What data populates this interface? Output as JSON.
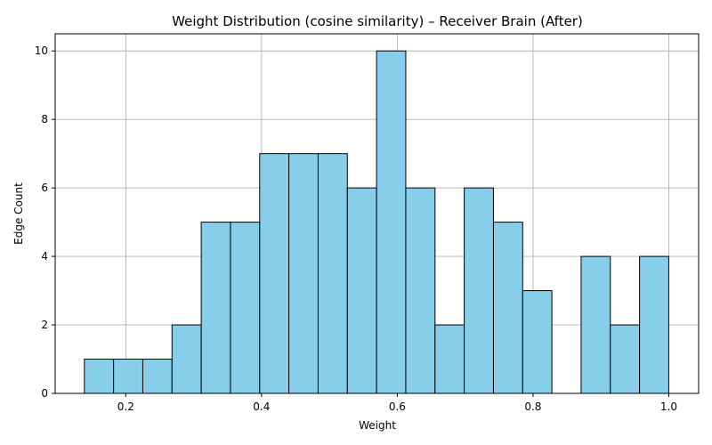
{
  "chart_data": {
    "type": "bar",
    "title": "Weight Distribution (cosine similarity) – Receiver Brain (After)",
    "xlabel": "Weight",
    "ylabel": "Edge Count",
    "xlim": [
      0.096,
      1.044
    ],
    "ylim": [
      0,
      10.5
    ],
    "xticks": [
      0.2,
      0.4,
      0.6,
      0.8,
      1.0
    ],
    "xtick_labels": [
      "0.2",
      "0.4",
      "0.6",
      "0.8",
      "1.0"
    ],
    "yticks": [
      0,
      2,
      4,
      6,
      8,
      10
    ],
    "ytick_labels": [
      "0",
      "2",
      "4",
      "6",
      "8",
      "10"
    ],
    "grid": true,
    "bins": {
      "start": 0.139,
      "end": 1.0,
      "counts": [
        1,
        1,
        1,
        2,
        5,
        5,
        7,
        7,
        7,
        6,
        10,
        6,
        2,
        6,
        5,
        3,
        0,
        4,
        2,
        4
      ]
    },
    "colors": {
      "bar_fill": "#87ceeb",
      "bar_edge": "#000000",
      "grid": "#b0b0b0"
    }
  }
}
